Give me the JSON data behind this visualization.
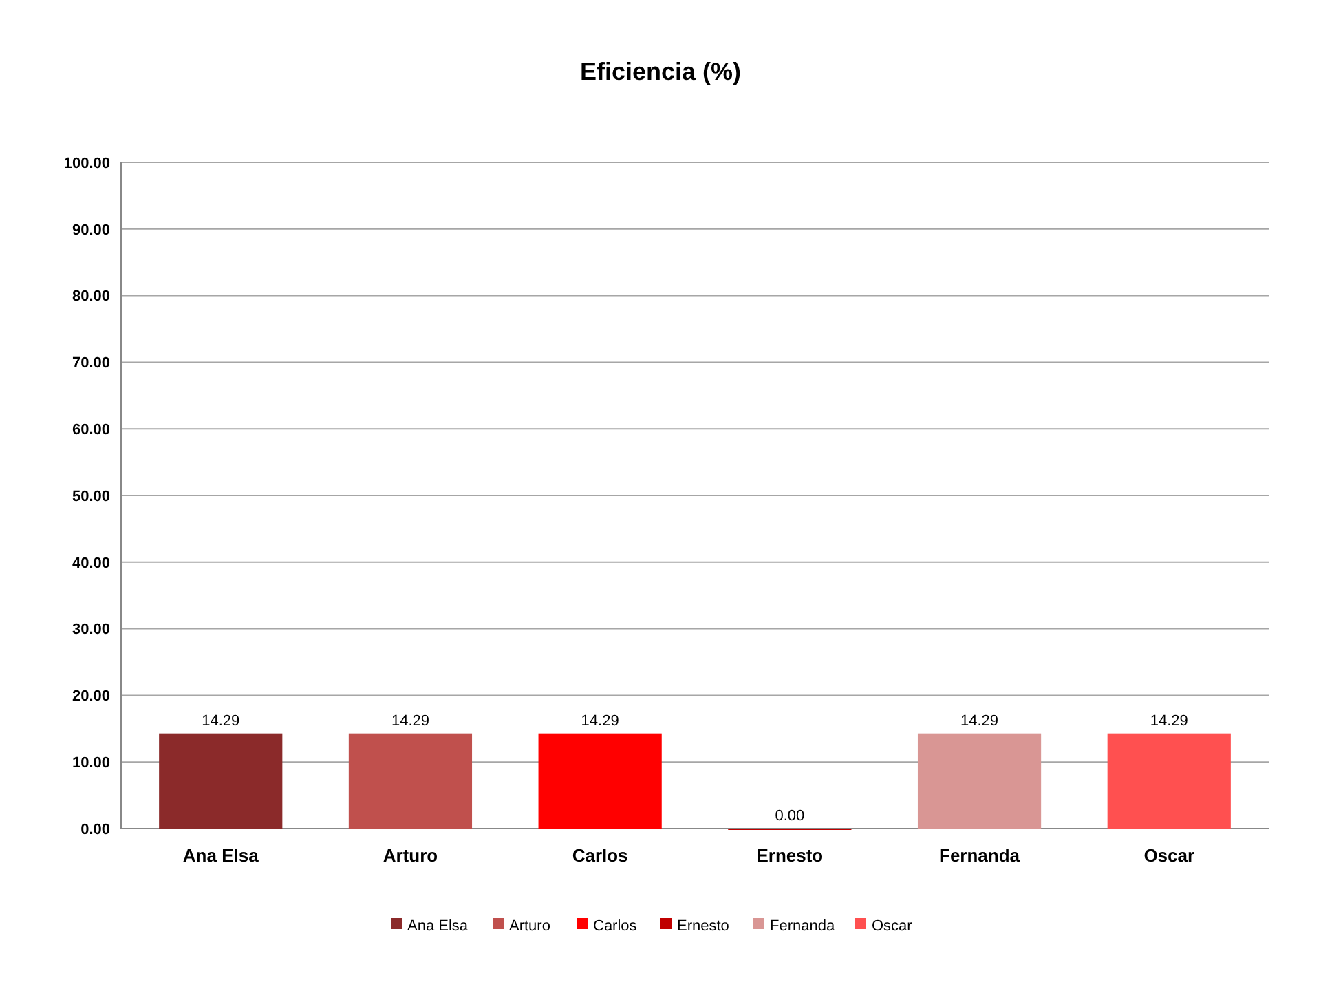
{
  "chart_data": {
    "type": "bar",
    "title": "Eficiencia (%)",
    "categories": [
      "Ana Elsa",
      "Arturo",
      "Carlos",
      "Ernesto",
      "Fernanda",
      "Oscar"
    ],
    "series": [
      {
        "name": "Ana Elsa",
        "color": "#8b2a2a",
        "values": [
          14.29,
          null,
          null,
          null,
          null,
          null
        ],
        "value_labels": [
          "14.29",
          null,
          null,
          null,
          null,
          null
        ]
      },
      {
        "name": "Arturo",
        "color": "#c0504d",
        "values": [
          null,
          14.29,
          null,
          null,
          null,
          null
        ],
        "value_labels": [
          null,
          "14.29",
          null,
          null,
          null,
          null
        ]
      },
      {
        "name": "Carlos",
        "color": "#ff0000",
        "values": [
          null,
          null,
          14.29,
          null,
          null,
          null
        ],
        "value_labels": [
          null,
          null,
          "14.29",
          null,
          null,
          null
        ]
      },
      {
        "name": "Ernesto",
        "color": "#c00000",
        "values": [
          null,
          null,
          null,
          0,
          null,
          null
        ],
        "value_labels": [
          null,
          null,
          null,
          "0.00",
          null,
          null
        ]
      },
      {
        "name": "Fernanda",
        "color": "#d99694",
        "values": [
          null,
          null,
          null,
          null,
          14.29,
          null
        ],
        "value_labels": [
          null,
          null,
          null,
          null,
          "14.29",
          null
        ]
      },
      {
        "name": "Oscar",
        "color": "#ff5050",
        "values": [
          null,
          null,
          null,
          null,
          null,
          14.29
        ],
        "value_labels": [
          null,
          null,
          null,
          null,
          null,
          "14.29"
        ]
      }
    ],
    "ylim": [
      0,
      100
    ],
    "yticks": [
      {
        "value": 0,
        "label": "0.00"
      },
      {
        "value": 10,
        "label": "10.00"
      },
      {
        "value": 20,
        "label": "20.00"
      },
      {
        "value": 30,
        "label": "30.00"
      },
      {
        "value": 40,
        "label": "40.00"
      },
      {
        "value": 50,
        "label": "50.00"
      },
      {
        "value": 60,
        "label": "60.00"
      },
      {
        "value": 70,
        "label": "70.00"
      },
      {
        "value": 80,
        "label": "80.00"
      },
      {
        "value": 90,
        "label": "90.00"
      },
      {
        "value": 100,
        "label": "100.00"
      }
    ],
    "grid": true,
    "legend": "bottom"
  }
}
